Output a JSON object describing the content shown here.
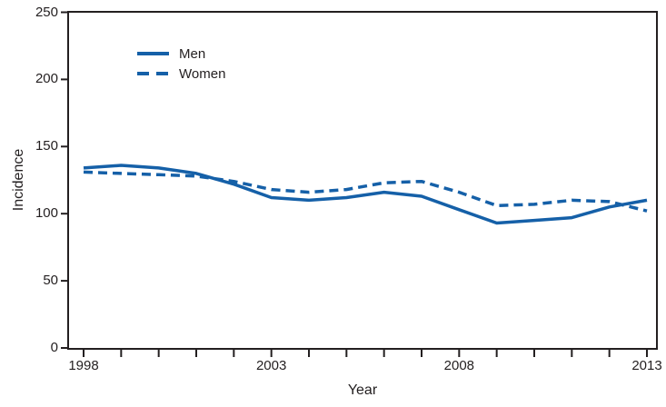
{
  "axes": {
    "y_title": "Incidence",
    "x_title": "Year"
  },
  "legend": {
    "items": [
      {
        "label": "Men",
        "style": "solid"
      },
      {
        "label": "Women",
        "style": "dashed"
      }
    ]
  },
  "chart_data": {
    "type": "line",
    "x": [
      1998,
      1999,
      2000,
      2001,
      2002,
      2003,
      2004,
      2005,
      2006,
      2007,
      2008,
      2009,
      2010,
      2011,
      2012,
      2013
    ],
    "series": [
      {
        "name": "Men",
        "style": "solid",
        "values": [
          134,
          136,
          134,
          130,
          122,
          112,
          110,
          112,
          116,
          113,
          103,
          93,
          95,
          97,
          105,
          110
        ]
      },
      {
        "name": "Women",
        "style": "dashed",
        "values": [
          131,
          130,
          129,
          128,
          124,
          118,
          116,
          118,
          123,
          124,
          116,
          106,
          107,
          110,
          109,
          102
        ]
      }
    ],
    "xlabel": "Year",
    "ylabel": "Incidence",
    "ylim": [
      0,
      250
    ],
    "xlim": [
      1998,
      2013
    ],
    "y_ticks": [
      0,
      50,
      100,
      150,
      200,
      250
    ],
    "x_ticks_every_year": true,
    "x_tick_labels": [
      "1998",
      "2003",
      "2008",
      "2013"
    ],
    "x_tick_label_years": [
      1998,
      2003,
      2008,
      2013
    ],
    "line_color": "#1560a8",
    "axis_color": "#231f20",
    "grid": false,
    "legend_position": "upper-left-inside"
  }
}
